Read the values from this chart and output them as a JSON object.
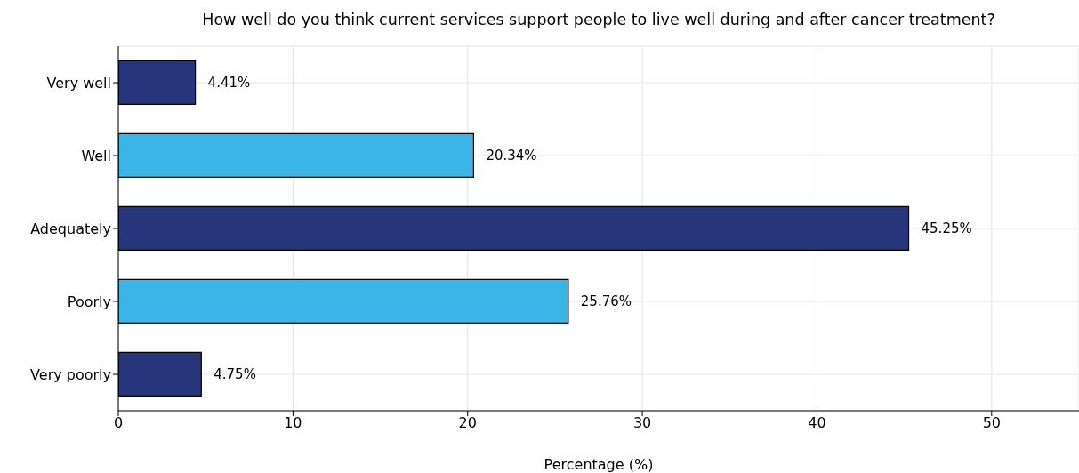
{
  "chart_data": {
    "type": "bar",
    "orientation": "horizontal",
    "title": "How well do you think current services support people to live well during and after cancer treatment?",
    "xlabel": "Percentage (%)",
    "categories": [
      "Very well",
      "Well",
      "Adequately",
      "Poorly",
      "Very poorly"
    ],
    "values": [
      4.41,
      20.34,
      45.25,
      25.76,
      4.75
    ],
    "colors": [
      "#27367a",
      "#3bb5e8",
      "#27367a",
      "#3bb5e8",
      "#27367a"
    ],
    "value_labels": [
      "4.41%",
      "20.34%",
      "45.25%",
      "25.76%",
      "4.75%"
    ],
    "xlim": [
      0,
      55
    ],
    "xticks": [
      0,
      10,
      20,
      30,
      40,
      50
    ],
    "grid": true
  }
}
